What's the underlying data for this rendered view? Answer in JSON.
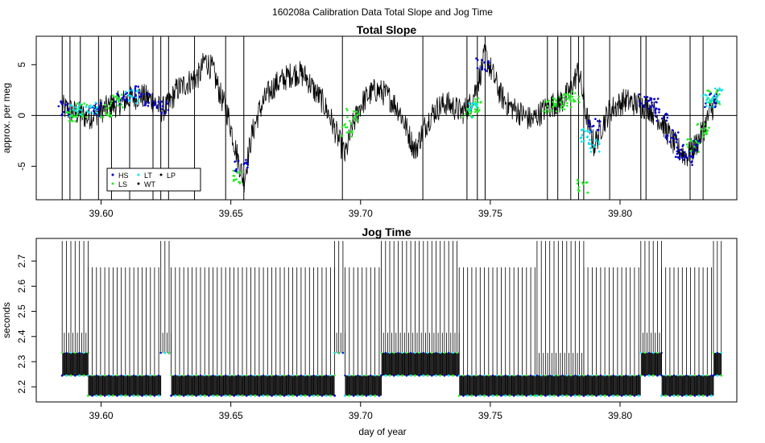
{
  "suptitle": "160208a   Calibration Data Total Slope and Jog Time",
  "xlabel": "day of year",
  "colors": {
    "HS": "#0000cc",
    "LS": "#22ee22",
    "LT": "#00e5ee",
    "WT": "#000000",
    "LP": "#000000",
    "axis": "#000000",
    "refline": "#000000"
  },
  "chart_data": [
    {
      "type": "scatter",
      "title": "Total Slope",
      "ylabel": "approx. per meg",
      "xlim": [
        39.575,
        39.845
      ],
      "ylim": [
        -8.3,
        7.8
      ],
      "xticks": [
        "39.60",
        "39.65",
        "39.70",
        "39.75",
        "39.80"
      ],
      "xtick_values": [
        39.6,
        39.65,
        39.7,
        39.75,
        39.8
      ],
      "yticks": [
        "-5",
        "0",
        "5"
      ],
      "ytick_values": [
        -5,
        0,
        5
      ],
      "hline": 0,
      "legend": {
        "placement": "bottom-left",
        "entries": [
          {
            "label": "HS",
            "color": "#0000cc"
          },
          {
            "label": "LT",
            "color": "#00e5ee"
          },
          {
            "label": "LP",
            "color": "#000000"
          },
          {
            "label": "LS",
            "color": "#22ee22"
          },
          {
            "label": "WT",
            "color": "#000000"
          }
        ]
      },
      "series": [
        {
          "name": "WT",
          "color": "#000000",
          "style": "line",
          "x": [
            39.585,
            39.59,
            39.595,
            39.6,
            39.605,
            39.61,
            39.615,
            39.62,
            39.623,
            39.626,
            39.629,
            39.632,
            39.635,
            39.638,
            39.64,
            39.643,
            39.646,
            39.649,
            39.652,
            39.655,
            39.658,
            39.661,
            39.664,
            39.667,
            39.67,
            39.673,
            39.676,
            39.679,
            39.682,
            39.685,
            39.688,
            39.691,
            39.694,
            39.697,
            39.7,
            39.703,
            39.706,
            39.709,
            39.712,
            39.715,
            39.718,
            39.721,
            39.724,
            39.727,
            39.73,
            39.733,
            39.736,
            39.739,
            39.742,
            39.745,
            39.748,
            39.751,
            39.754,
            39.757,
            39.76,
            39.763,
            39.766,
            39.769,
            39.772,
            39.775,
            39.778,
            39.781,
            39.784,
            39.787,
            39.79,
            39.793,
            39.796,
            39.799,
            39.802,
            39.805,
            39.808,
            39.811,
            39.814,
            39.817,
            39.82,
            39.823,
            39.826,
            39.829,
            39.832,
            39.835,
            39.838
          ],
          "y": [
            0.8,
            0.3,
            -0.2,
            0.5,
            1.0,
            1.5,
            2.0,
            1.5,
            0.5,
            1.0,
            2.5,
            3.0,
            3.5,
            4.0,
            5.5,
            4.5,
            2.0,
            0.0,
            -3.5,
            -6.5,
            -2.0,
            0.5,
            2.0,
            3.0,
            3.5,
            4.0,
            4.2,
            3.8,
            2.5,
            1.5,
            0.0,
            -2.0,
            -4.0,
            -1.0,
            1.0,
            2.0,
            2.5,
            2.2,
            1.5,
            0.5,
            -1.5,
            -3.5,
            -1.5,
            0.0,
            0.8,
            1.2,
            0.8,
            0.3,
            1.0,
            3.0,
            6.0,
            4.0,
            2.0,
            1.0,
            0.5,
            0.0,
            -0.5,
            0.2,
            0.8,
            1.2,
            1.5,
            2.5,
            4.5,
            0.0,
            -3.0,
            -1.0,
            0.5,
            1.0,
            1.5,
            1.2,
            1.0,
            0.8,
            0.0,
            -1.0,
            -2.5,
            -3.5,
            -4.0,
            -3.0,
            -1.5,
            0.5,
            1.8
          ]
        },
        {
          "name": "HS",
          "color": "#0000cc",
          "style": "points",
          "x": [
            39.586,
            39.598,
            39.608,
            39.614,
            39.619,
            39.624,
            39.654,
            39.747,
            39.79,
            39.81,
            39.813,
            39.816,
            39.82,
            39.823,
            39.826,
            39.829,
            39.835
          ],
          "y": [
            0.7,
            0.5,
            1.8,
            2.2,
            1.5,
            0.8,
            -5.0,
            5.0,
            -1.0,
            1.5,
            1.0,
            0.0,
            -2.0,
            -3.5,
            -4.2,
            -3.0,
            1.5
          ]
        },
        {
          "name": "LS",
          "color": "#22ee22",
          "style": "points",
          "x": [
            39.589,
            39.592,
            39.602,
            39.606,
            39.653,
            39.695,
            39.697,
            39.742,
            39.744,
            39.773,
            39.776,
            39.779,
            39.782,
            39.786,
            39.828,
            39.832,
            39.836
          ],
          "y": [
            0.0,
            0.5,
            0.5,
            1.5,
            -6.0,
            -1.5,
            0.0,
            0.5,
            1.0,
            1.0,
            1.2,
            1.5,
            1.8,
            -7.0,
            -3.0,
            -1.5,
            1.8
          ]
        },
        {
          "name": "LT",
          "color": "#00e5ee",
          "style": "points",
          "x": [
            39.59,
            39.596,
            39.612,
            39.743,
            39.787,
            39.79,
            39.834,
            39.837
          ],
          "y": [
            0.5,
            0.8,
            1.8,
            0.5,
            -2.0,
            -3.0,
            1.5,
            2.0
          ]
        },
        {
          "name": "LP",
          "color": "#000000",
          "style": "vlines",
          "x": [
            39.585,
            39.588,
            39.592,
            39.599,
            39.604,
            39.611,
            39.62,
            39.623,
            39.626,
            39.636,
            39.648,
            39.655,
            39.693,
            39.724,
            39.741,
            39.745,
            39.748,
            39.772,
            39.776,
            39.781,
            39.784,
            39.786,
            39.796,
            39.808,
            39.81,
            39.827,
            39.832
          ]
        }
      ]
    },
    {
      "type": "scatter",
      "title": "Jog Time",
      "ylabel": "seconds",
      "xlim": [
        39.575,
        39.845
      ],
      "ylim": [
        2.14,
        2.79
      ],
      "xticks": [
        "39.60",
        "39.65",
        "39.70",
        "39.75",
        "39.80"
      ],
      "xtick_values": [
        39.6,
        39.65,
        39.7,
        39.75,
        39.8
      ],
      "yticks": [
        "2.2",
        "2.3",
        "2.4",
        "2.5",
        "2.6",
        "2.7"
      ],
      "ytick_values": [
        2.2,
        2.3,
        2.4,
        2.5,
        2.6,
        2.7
      ],
      "levels": [
        2.165,
        2.245,
        2.335,
        2.42,
        2.675
      ],
      "segments": [
        {
          "x0": 39.585,
          "x1": 39.595,
          "high": 2.78,
          "low": 2.245,
          "mid": 2.335,
          "midtop": 2.415
        },
        {
          "x0": 39.595,
          "x1": 39.623,
          "high": 2.675,
          "low": 2.165,
          "mid": 2.245,
          "midtop": 2.245
        },
        {
          "x0": 39.623,
          "x1": 39.627,
          "high": 2.78,
          "low": 2.335,
          "mid": 2.335,
          "midtop": 2.415
        },
        {
          "x0": 39.627,
          "x1": 39.69,
          "high": 2.675,
          "low": 2.165,
          "mid": 2.245,
          "midtop": 2.245
        },
        {
          "x0": 39.69,
          "x1": 39.694,
          "high": 2.78,
          "low": 2.335,
          "mid": 2.335,
          "midtop": 2.415
        },
        {
          "x0": 39.694,
          "x1": 39.708,
          "high": 2.675,
          "low": 2.165,
          "mid": 2.245,
          "midtop": 2.245
        },
        {
          "x0": 39.708,
          "x1": 39.738,
          "high": 2.78,
          "low": 2.245,
          "mid": 2.335,
          "midtop": 2.415
        },
        {
          "x0": 39.738,
          "x1": 39.768,
          "high": 2.675,
          "low": 2.165,
          "mid": 2.245,
          "midtop": 2.245
        },
        {
          "x0": 39.768,
          "x1": 39.786,
          "high": 2.78,
          "low": 2.165,
          "mid": 2.245,
          "midtop": 2.335
        },
        {
          "x0": 39.786,
          "x1": 39.808,
          "high": 2.675,
          "low": 2.165,
          "mid": 2.245,
          "midtop": 2.245
        },
        {
          "x0": 39.808,
          "x1": 39.816,
          "high": 2.78,
          "low": 2.245,
          "mid": 2.335,
          "midtop": 2.415
        },
        {
          "x0": 39.816,
          "x1": 39.836,
          "high": 2.675,
          "low": 2.165,
          "mid": 2.245,
          "midtop": 2.245
        },
        {
          "x0": 39.836,
          "x1": 39.839,
          "high": 2.78,
          "low": 2.245,
          "mid": 2.335,
          "midtop": 2.335
        }
      ]
    }
  ]
}
